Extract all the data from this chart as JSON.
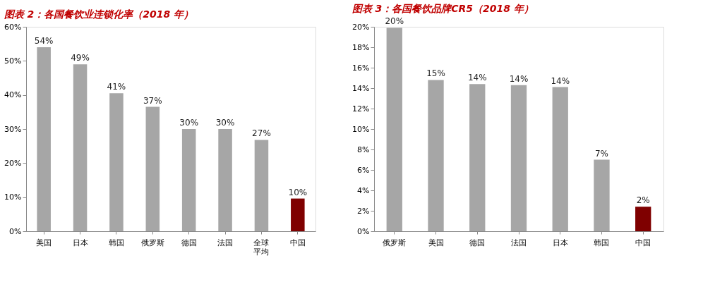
{
  "chart_data": [
    {
      "type": "bar",
      "title": "图表 2：各国餐饮业连锁化率（2018 年）",
      "categories": [
        "美国",
        "日本",
        "韩国",
        "俄罗斯",
        "德国",
        "法国",
        "全球平均",
        "中国"
      ],
      "values": [
        54,
        49,
        40.5,
        36.5,
        30,
        30,
        26.8,
        9.6
      ],
      "value_labels": [
        "54%",
        "49%",
        "41%",
        "37%",
        "30%",
        "30%",
        "27%",
        "10%"
      ],
      "colors": [
        "#a6a6a6",
        "#a6a6a6",
        "#a6a6a6",
        "#a6a6a6",
        "#a6a6a6",
        "#a6a6a6",
        "#a6a6a6",
        "#7f0000"
      ],
      "ylim": [
        0,
        60
      ],
      "yticks": [
        {
          "value": 0,
          "label": "0%"
        },
        {
          "value": 10,
          "label": "10%"
        },
        {
          "value": 20,
          "label": "20%"
        },
        {
          "value": 30,
          "label": "30%"
        },
        {
          "value": 40,
          "label": "40%"
        },
        {
          "value": 50,
          "label": "50%"
        },
        {
          "value": 60,
          "label": "60%"
        }
      ]
    },
    {
      "type": "bar",
      "title": "图表 3：各国餐饮品牌CR5（2018 年）",
      "categories": [
        "俄罗斯",
        "美国",
        "德国",
        "法国",
        "日本",
        "韩国",
        "中国"
      ],
      "values": [
        19.9,
        14.8,
        14.4,
        14.3,
        14.1,
        7.0,
        2.4
      ],
      "value_labels": [
        "20%",
        "15%",
        "14%",
        "14%",
        "14%",
        "7%",
        "2%"
      ],
      "colors": [
        "#a6a6a6",
        "#a6a6a6",
        "#a6a6a6",
        "#a6a6a6",
        "#a6a6a6",
        "#a6a6a6",
        "#7f0000"
      ],
      "ylim": [
        0,
        20
      ],
      "yticks": [
        {
          "value": 0,
          "label": "0%"
        },
        {
          "value": 2,
          "label": "2%"
        },
        {
          "value": 4,
          "label": "4%"
        },
        {
          "value": 6,
          "label": "6%"
        },
        {
          "value": 8,
          "label": "8%"
        },
        {
          "value": 10,
          "label": "10%"
        },
        {
          "value": 12,
          "label": "12%"
        },
        {
          "value": 14,
          "label": "14%"
        },
        {
          "value": 16,
          "label": "16%"
        },
        {
          "value": 18,
          "label": "18%"
        },
        {
          "value": 20,
          "label": "20%"
        }
      ]
    }
  ]
}
